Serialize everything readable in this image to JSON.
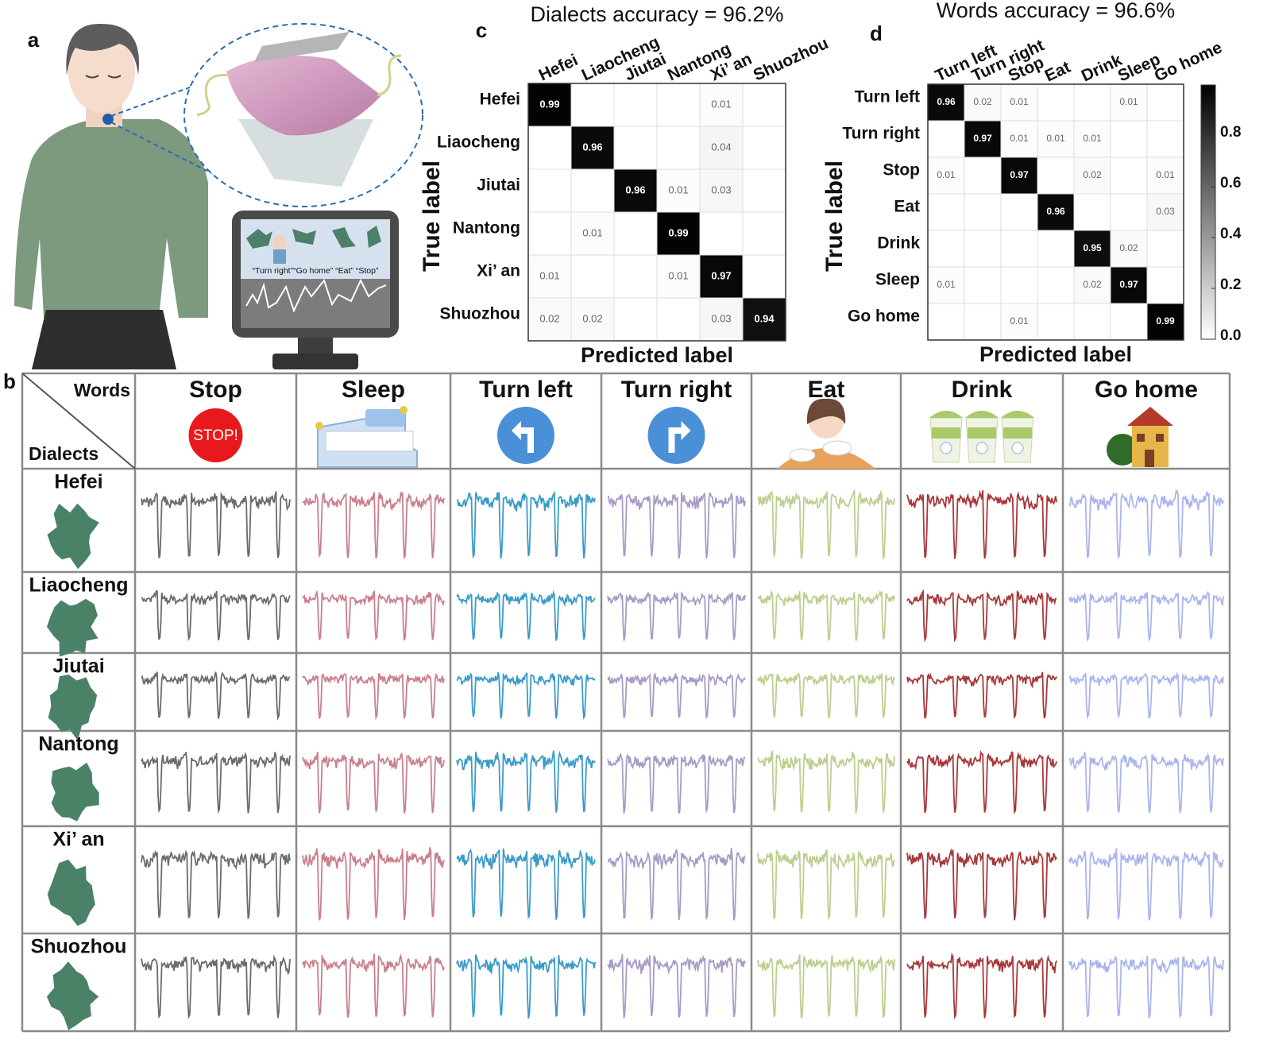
{
  "panel_labels": {
    "a": "a",
    "b": "b",
    "c": "c",
    "d": "d"
  },
  "illustration": {
    "monitor_text": "“Turn right”“Go home” “Eat” “Stop”"
  },
  "chart_data": [
    {
      "type": "heatmap",
      "title": "Dialects accuracy = 96.2%",
      "x_label": "Predicted label",
      "y_label": "True label",
      "categories": [
        "Hefei",
        "Liaocheng",
        "Jiutai",
        "Nantong",
        "Xi’ an",
        "Shuozhou"
      ],
      "values": [
        [
          0.99,
          0,
          0,
          0,
          0.01,
          0
        ],
        [
          0,
          0.96,
          0,
          0,
          0.04,
          0
        ],
        [
          0,
          0,
          0.96,
          0.01,
          0.03,
          0
        ],
        [
          0,
          0.01,
          0,
          0.99,
          0,
          0
        ],
        [
          0.01,
          0,
          0,
          0.01,
          0.97,
          0
        ],
        [
          0.02,
          0.02,
          0,
          0,
          0.03,
          0.94
        ]
      ]
    },
    {
      "type": "heatmap",
      "title": "Words accuracy = 96.6%",
      "x_label": "Predicted label",
      "y_label": "True label",
      "categories": [
        "Turn left",
        "Turn right",
        "Stop",
        "Eat",
        "Drink",
        "Sleep",
        "Go home"
      ],
      "values": [
        [
          0.96,
          0.02,
          0.01,
          0,
          0,
          0.01,
          0
        ],
        [
          0,
          0.97,
          0.01,
          0.01,
          0.01,
          0,
          0
        ],
        [
          0.01,
          0,
          0.97,
          0,
          0.02,
          0,
          0.01
        ],
        [
          0,
          0,
          0,
          0.96,
          0,
          0,
          0.03
        ],
        [
          0,
          0,
          0,
          0,
          0.95,
          0.02,
          0
        ],
        [
          0.01,
          0,
          0,
          0,
          0.02,
          0.97,
          0
        ],
        [
          0,
          0,
          0.01,
          0,
          0,
          0,
          0.99
        ]
      ],
      "colorbar": {
        "clim": [
          0,
          1
        ],
        "ticks": [
          {
            "value": 0,
            "label": "0.0"
          },
          0.2,
          0.4,
          0.6,
          0.8
        ]
      }
    }
  ],
  "table": {
    "corner_top": "Words",
    "corner_bottom": "Dialects",
    "stop_sign": "STOP!",
    "columns": [
      {
        "label": "Stop",
        "color": "#6b6b6b"
      },
      {
        "label": "Sleep",
        "color": "#c9808c"
      },
      {
        "label": "Turn left",
        "color": "#3b9bc8"
      },
      {
        "label": "Turn right",
        "color": "#a89bc6"
      },
      {
        "label": "Eat",
        "color": "#bccf8f"
      },
      {
        "label": "Drink",
        "color": "#a8383a"
      },
      {
        "label": "Go home",
        "color": "#aab5ee"
      }
    ],
    "rows": [
      "Hefei",
      "Liaocheng",
      "Jiutai",
      "Nantong",
      "Xi’ an",
      "Shuozhou"
    ]
  }
}
